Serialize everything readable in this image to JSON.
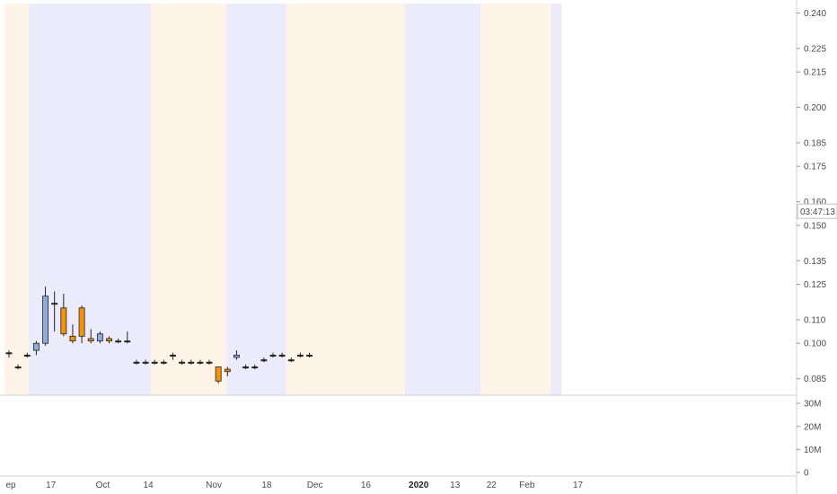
{
  "chart_data": {
    "type": "candlestick",
    "price_axis": {
      "ticks": [
        "0.240",
        "0.225",
        "0.215",
        "0.200",
        "0.185",
        "0.175",
        "0.160",
        "0.150",
        "0.135",
        "0.125",
        "0.110",
        "0.100",
        "0.085"
      ],
      "tick_values": [
        0.24,
        0.225,
        0.215,
        0.2,
        0.185,
        0.175,
        0.16,
        0.15,
        0.135,
        0.125,
        0.11,
        0.1,
        0.085
      ],
      "range": [
        0.078,
        0.244
      ],
      "countdown_label": "03:47:13",
      "countdown_value": 0.156
    },
    "volume_axis": {
      "ticks": [
        "30M",
        "20M",
        "10M",
        "0"
      ],
      "tick_values": [
        30,
        20,
        10,
        0
      ],
      "range": [
        0,
        32
      ]
    },
    "time_axis": {
      "index_range": [
        0,
        56
      ],
      "labels": [
        {
          "text": "ep",
          "i": 0.2,
          "bold": false
        },
        {
          "text": "17",
          "i": 4.6,
          "bold": false
        },
        {
          "text": "Oct",
          "i": 10.3,
          "bold": false
        },
        {
          "text": "14",
          "i": 15.3,
          "bold": false
        },
        {
          "text": "Nov",
          "i": 22.5,
          "bold": false
        },
        {
          "text": "18",
          "i": 28.3,
          "bold": false
        },
        {
          "text": "Dec",
          "i": 33.6,
          "bold": false
        },
        {
          "text": "16",
          "i": 39.2,
          "bold": false
        },
        {
          "text": "2020",
          "i": 45.0,
          "bold": true
        },
        {
          "text": "13",
          "i": 49.0,
          "bold": false
        },
        {
          "text": "22",
          "i": 53.0,
          "bold": false
        },
        {
          "text": "Feb",
          "i": 56.9,
          "bold": false
        },
        {
          "text": "17",
          "i": 62.5,
          "bold": false
        }
      ]
    },
    "bands": [
      {
        "from": -0.5,
        "to": 2.2,
        "kind": "orange"
      },
      {
        "from": 2.2,
        "to": 15.6,
        "kind": "blue"
      },
      {
        "from": 15.6,
        "to": 23.9,
        "kind": "orange"
      },
      {
        "from": 23.9,
        "to": 30.4,
        "kind": "blue"
      },
      {
        "from": 30.4,
        "to": 43.5,
        "kind": "orange"
      },
      {
        "from": 43.5,
        "to": 51.8,
        "kind": "blue"
      },
      {
        "from": 51.8,
        "to": 59.5,
        "kind": "orange"
      },
      {
        "from": 59.5,
        "to": 60.7,
        "kind": "blue"
      }
    ],
    "colors": {
      "up": "#8faadc",
      "down": "#f0930f",
      "neutral": "#222222",
      "band_blue": "#ebebfc",
      "band_orange": "#fdf3e7",
      "ma_fast": "#9a9a9a",
      "ma_slow": "#9c4d8f",
      "vol_up": "#8fd4c8",
      "vol_down": "#f5a3a5",
      "sig_green": "#3a8a5a",
      "sig_red": "#e0445e",
      "dot_orange": "#f5a23a",
      "dot_red": "#e0445e",
      "dot_green": "#5fae86"
    },
    "candles": [
      {
        "i": 0,
        "o": 0.096,
        "h": 0.097,
        "l": 0.094,
        "c": 0.096
      },
      {
        "i": 1,
        "o": 0.09,
        "h": 0.091,
        "l": 0.089,
        "c": 0.09
      },
      {
        "i": 2,
        "o": 0.095,
        "h": 0.096,
        "l": 0.094,
        "c": 0.095
      },
      {
        "i": 3,
        "o": 0.097,
        "h": 0.101,
        "l": 0.095,
        "c": 0.1
      },
      {
        "i": 4,
        "o": 0.1,
        "h": 0.124,
        "l": 0.099,
        "c": 0.12
      },
      {
        "i": 5,
        "o": 0.117,
        "h": 0.122,
        "l": 0.105,
        "c": 0.117
      },
      {
        "i": 6,
        "o": 0.115,
        "h": 0.121,
        "l": 0.103,
        "c": 0.104
      },
      {
        "i": 7,
        "o": 0.103,
        "h": 0.108,
        "l": 0.1,
        "c": 0.101
      },
      {
        "i": 8,
        "o": 0.115,
        "h": 0.116,
        "l": 0.1,
        "c": 0.103
      },
      {
        "i": 9,
        "o": 0.102,
        "h": 0.106,
        "l": 0.1,
        "c": 0.101
      },
      {
        "i": 10,
        "o": 0.101,
        "h": 0.105,
        "l": 0.1,
        "c": 0.104
      },
      {
        "i": 11,
        "o": 0.102,
        "h": 0.103,
        "l": 0.1,
        "c": 0.101
      },
      {
        "i": 12,
        "o": 0.101,
        "h": 0.102,
        "l": 0.1,
        "c": 0.101
      },
      {
        "i": 13,
        "o": 0.101,
        "h": 0.105,
        "l": 0.1,
        "c": 0.101
      },
      {
        "i": 14,
        "o": 0.092,
        "h": 0.093,
        "l": 0.091,
        "c": 0.092
      },
      {
        "i": 15,
        "o": 0.092,
        "h": 0.093,
        "l": 0.091,
        "c": 0.092
      },
      {
        "i": 16,
        "o": 0.092,
        "h": 0.093,
        "l": 0.091,
        "c": 0.092
      },
      {
        "i": 17,
        "o": 0.092,
        "h": 0.093,
        "l": 0.091,
        "c": 0.092
      },
      {
        "i": 18,
        "o": 0.095,
        "h": 0.096,
        "l": 0.093,
        "c": 0.095
      },
      {
        "i": 19,
        "o": 0.092,
        "h": 0.093,
        "l": 0.091,
        "c": 0.092
      },
      {
        "i": 20,
        "o": 0.092,
        "h": 0.093,
        "l": 0.091,
        "c": 0.092
      },
      {
        "i": 21,
        "o": 0.092,
        "h": 0.093,
        "l": 0.091,
        "c": 0.092
      },
      {
        "i": 22,
        "o": 0.092,
        "h": 0.093,
        "l": 0.091,
        "c": 0.092
      },
      {
        "i": 23,
        "o": 0.09,
        "h": 0.09,
        "l": 0.083,
        "c": 0.084
      },
      {
        "i": 24,
        "o": 0.089,
        "h": 0.09,
        "l": 0.086,
        "c": 0.088
      },
      {
        "i": 25,
        "o": 0.094,
        "h": 0.097,
        "l": 0.093,
        "c": 0.095
      },
      {
        "i": 26,
        "o": 0.09,
        "h": 0.091,
        "l": 0.089,
        "c": 0.09
      },
      {
        "i": 27,
        "o": 0.09,
        "h": 0.091,
        "l": 0.089,
        "c": 0.09
      },
      {
        "i": 28,
        "o": 0.093,
        "h": 0.094,
        "l": 0.092,
        "c": 0.093
      },
      {
        "i": 29,
        "o": 0.095,
        "h": 0.096,
        "l": 0.094,
        "c": 0.095
      },
      {
        "i": 30,
        "o": 0.095,
        "h": 0.096,
        "l": 0.094,
        "c": 0.095
      },
      {
        "i": 31,
        "o": 0.093,
        "h": 0.094,
        "l": 0.092,
        "c": 0.093
      },
      {
        "i": 32,
        "o": 0.095,
        "h": 0.096,
        "l": 0.094,
        "c": 0.095
      },
      {
        "i": 33,
        "o": 0.095,
        "h": 0.096,
        "l": 0.094,
        "c": 0.095
      }
    ]
  }
}
